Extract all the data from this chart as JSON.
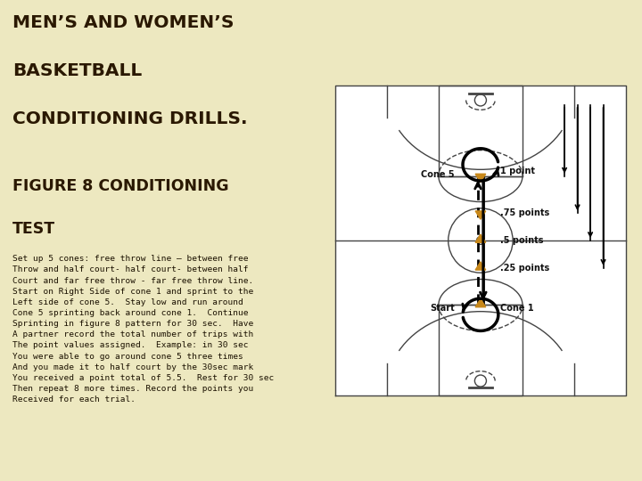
{
  "bg_left": "#ede8c0",
  "bg_right": "#ffffff",
  "title_lines": [
    "MEN’S AND WOMEN’S",
    "BASKETBALL",
    "CONDITIONING DRILLS."
  ],
  "subtitle_lines": [
    "FIGURE 8 CONDITIONING",
    "TEST"
  ],
  "body_text_lines": [
    "Set up 5 cones: free throw line – between free",
    "Throw and half court- half court- between half",
    "Court and far free throw - far free throw line.",
    "Start on Right Side of cone 1 and sprint to the",
    "Left side of cone 5.  Stay low and run around",
    "Cone 5 sprinting back around cone 1.  Continue",
    "Sprinting in figure 8 pattern for 30 sec.  Have",
    "A partner record the total number of trips with",
    "The point values assigned.  Example: in 30 sec",
    "You were able to go around cone 5 three times",
    "And you made it to half court by the 30sec mark",
    "You received a point total of 5.5.  Rest for 30 sec",
    "Then repeat 8 more times. Record the points you",
    "Received for each trial."
  ],
  "court_line_color": "#444444",
  "cone_color": "#c8881a",
  "label_color": "#111111",
  "point_labels": [
    ".75 points",
    ".5 points",
    ".25 points"
  ],
  "cone5_label": "Cone 5",
  "cone1_label": "Cone 1",
  "start_label": "Start",
  "point1_label": "1 point",
  "title_color": "#2a1800",
  "body_color": "#1a1000"
}
